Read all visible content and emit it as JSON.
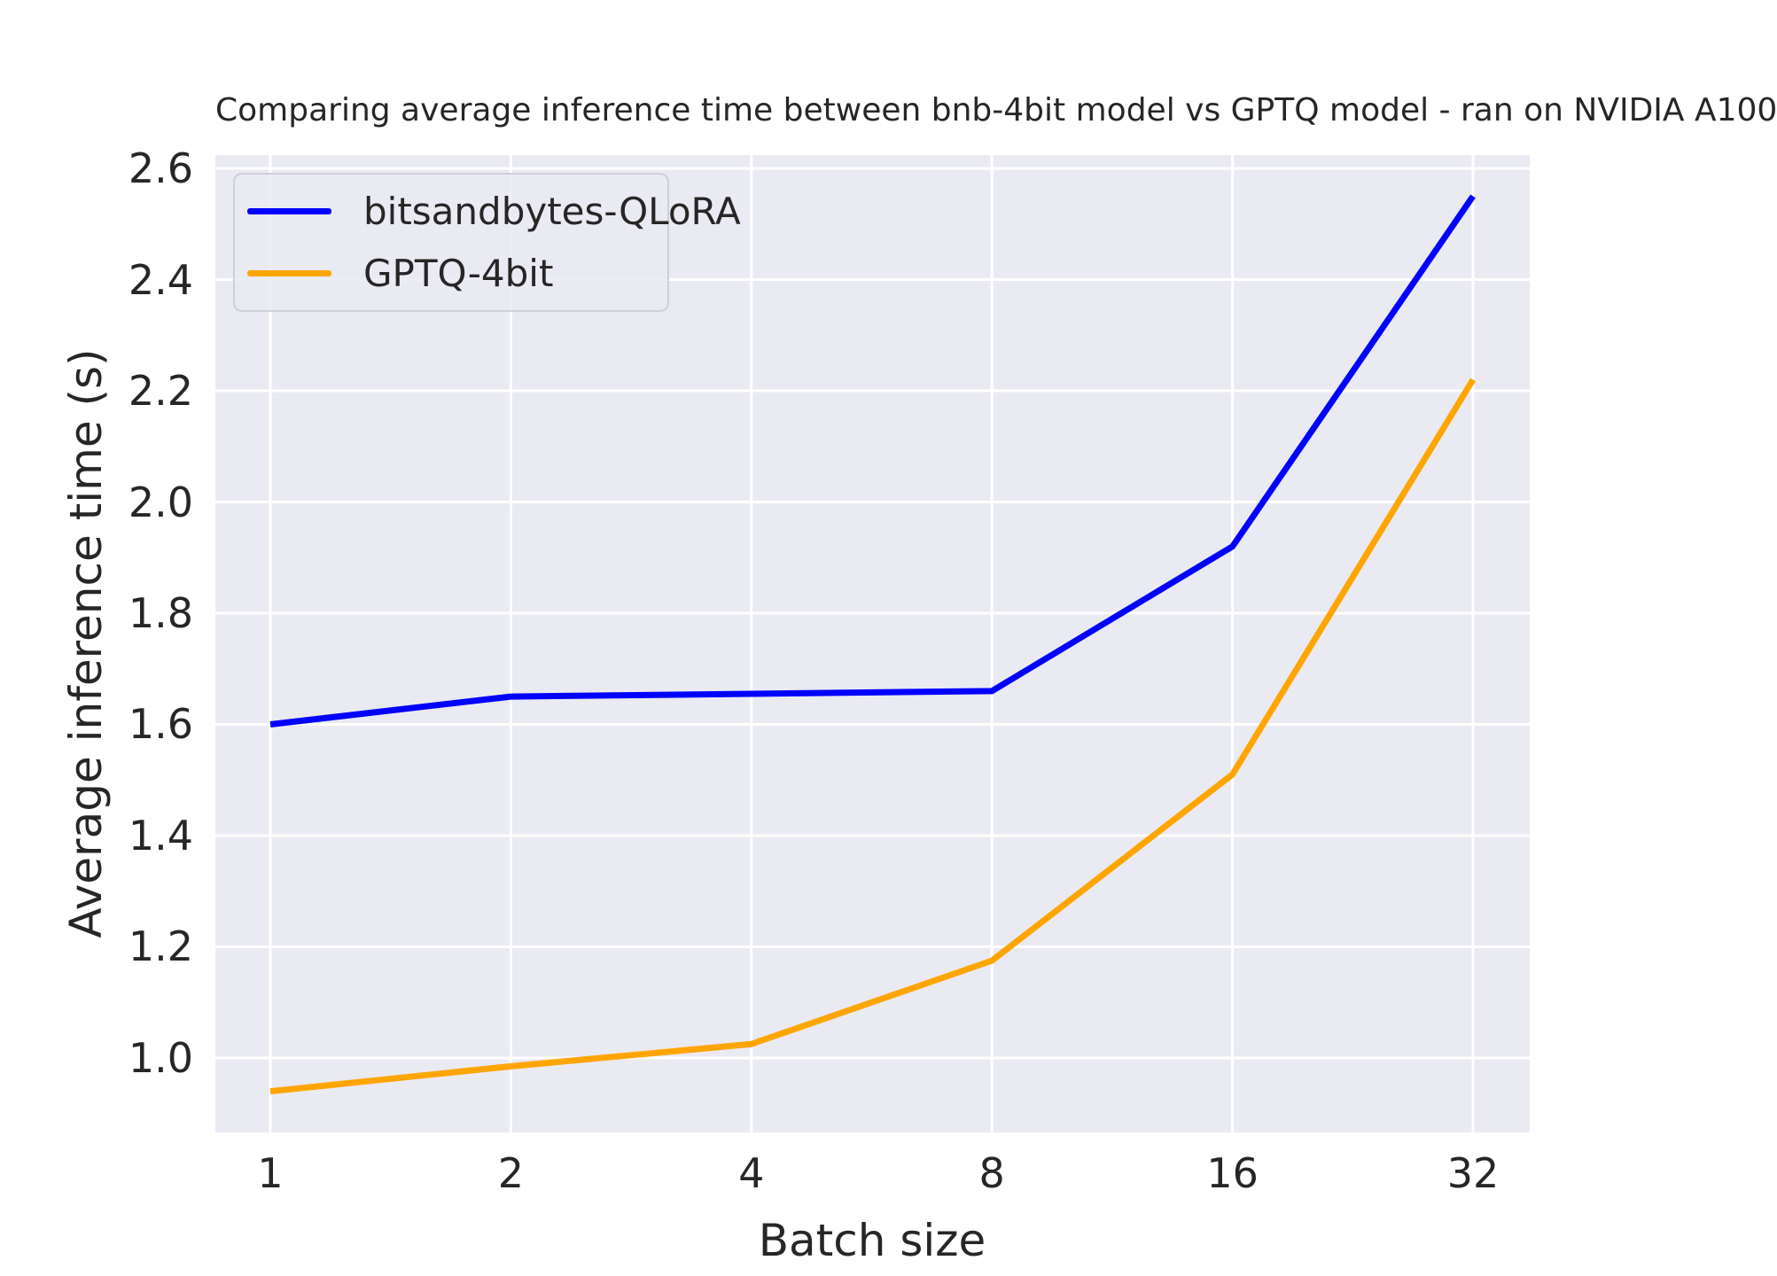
{
  "figure": {
    "background_color": "#ffffff",
    "text_color": "#262626",
    "plot_background_color": "#eaeaf2",
    "grid_color": "#ffffff"
  },
  "chart_data": {
    "type": "line",
    "title": "Comparing average inference time between bnb-4bit model vs GPTQ model - ran on NVIDIA A100",
    "xlabel": "Batch size",
    "ylabel": "Average inference time (s)",
    "x_values": [
      1,
      2,
      4,
      8,
      16,
      32
    ],
    "x_tick_labels": [
      "1",
      "2",
      "4",
      "8",
      "16",
      "32"
    ],
    "x_scale": "log2-evenly-spaced-categories",
    "series": [
      {
        "name": "bitsandbytes-QLoRA",
        "color": "#0000ff",
        "values": [
          1.6,
          1.65,
          1.655,
          1.66,
          1.92,
          2.55
        ]
      },
      {
        "name": "GPTQ-4bit",
        "color": "#ffa500",
        "values": [
          0.94,
          0.985,
          1.025,
          1.175,
          1.51,
          2.22
        ]
      }
    ],
    "ytick_values": [
      1.0,
      1.2,
      1.4,
      1.6,
      1.8,
      2.0,
      2.2,
      2.4,
      2.6
    ],
    "ytick_labels": [
      "1.0",
      "1.2",
      "1.4",
      "1.6",
      "1.8",
      "2.0",
      "2.2",
      "2.4",
      "2.6"
    ],
    "ylim": [
      0.866,
      2.624
    ],
    "grid": true,
    "legend_position": "upper left"
  }
}
